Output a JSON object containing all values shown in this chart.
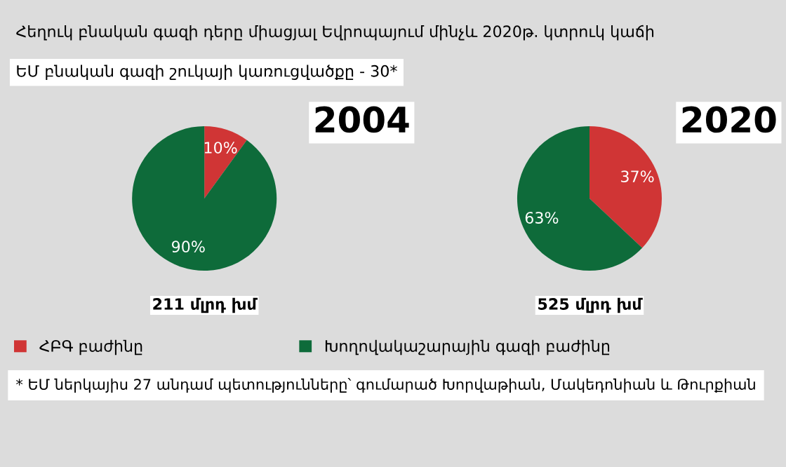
{
  "chart_data": [
    {
      "type": "pie",
      "title": "2004",
      "xlabel": "211 մլրդ խմ",
      "annotations": [
        "Հեղուկ բնական գազի դերը միացյալ Եվրոպայում մինչև 2020թ. կտրուկ կաճի",
        "ԵՄ բնական գազի շուկայի կառուցվածքը - 30*",
        "* ԵՄ ներկայիս 27 անդամ պետությունները՝ գումարած Խորվաթիան, Մակեդոնիան և Թուրքիան"
      ],
      "categories": [
        "ՀԲԳ բաժինը",
        "Խողովակաշարային գազի բաժինը"
      ],
      "values": [
        10,
        90
      ],
      "colors": [
        "#d03535",
        "#0e6b3a"
      ],
      "value_labels": [
        "10%",
        "90%"
      ],
      "legend": "bottom"
    },
    {
      "type": "pie",
      "title": "2020",
      "xlabel": "525 մլրդ խմ",
      "categories": [
        null,
        null
      ],
      "values": [
        37,
        63
      ],
      "colors": [
        "#d03535",
        "#0e6b3a"
      ],
      "value_labels": [
        "37%",
        "63%"
      ]
    }
  ]
}
